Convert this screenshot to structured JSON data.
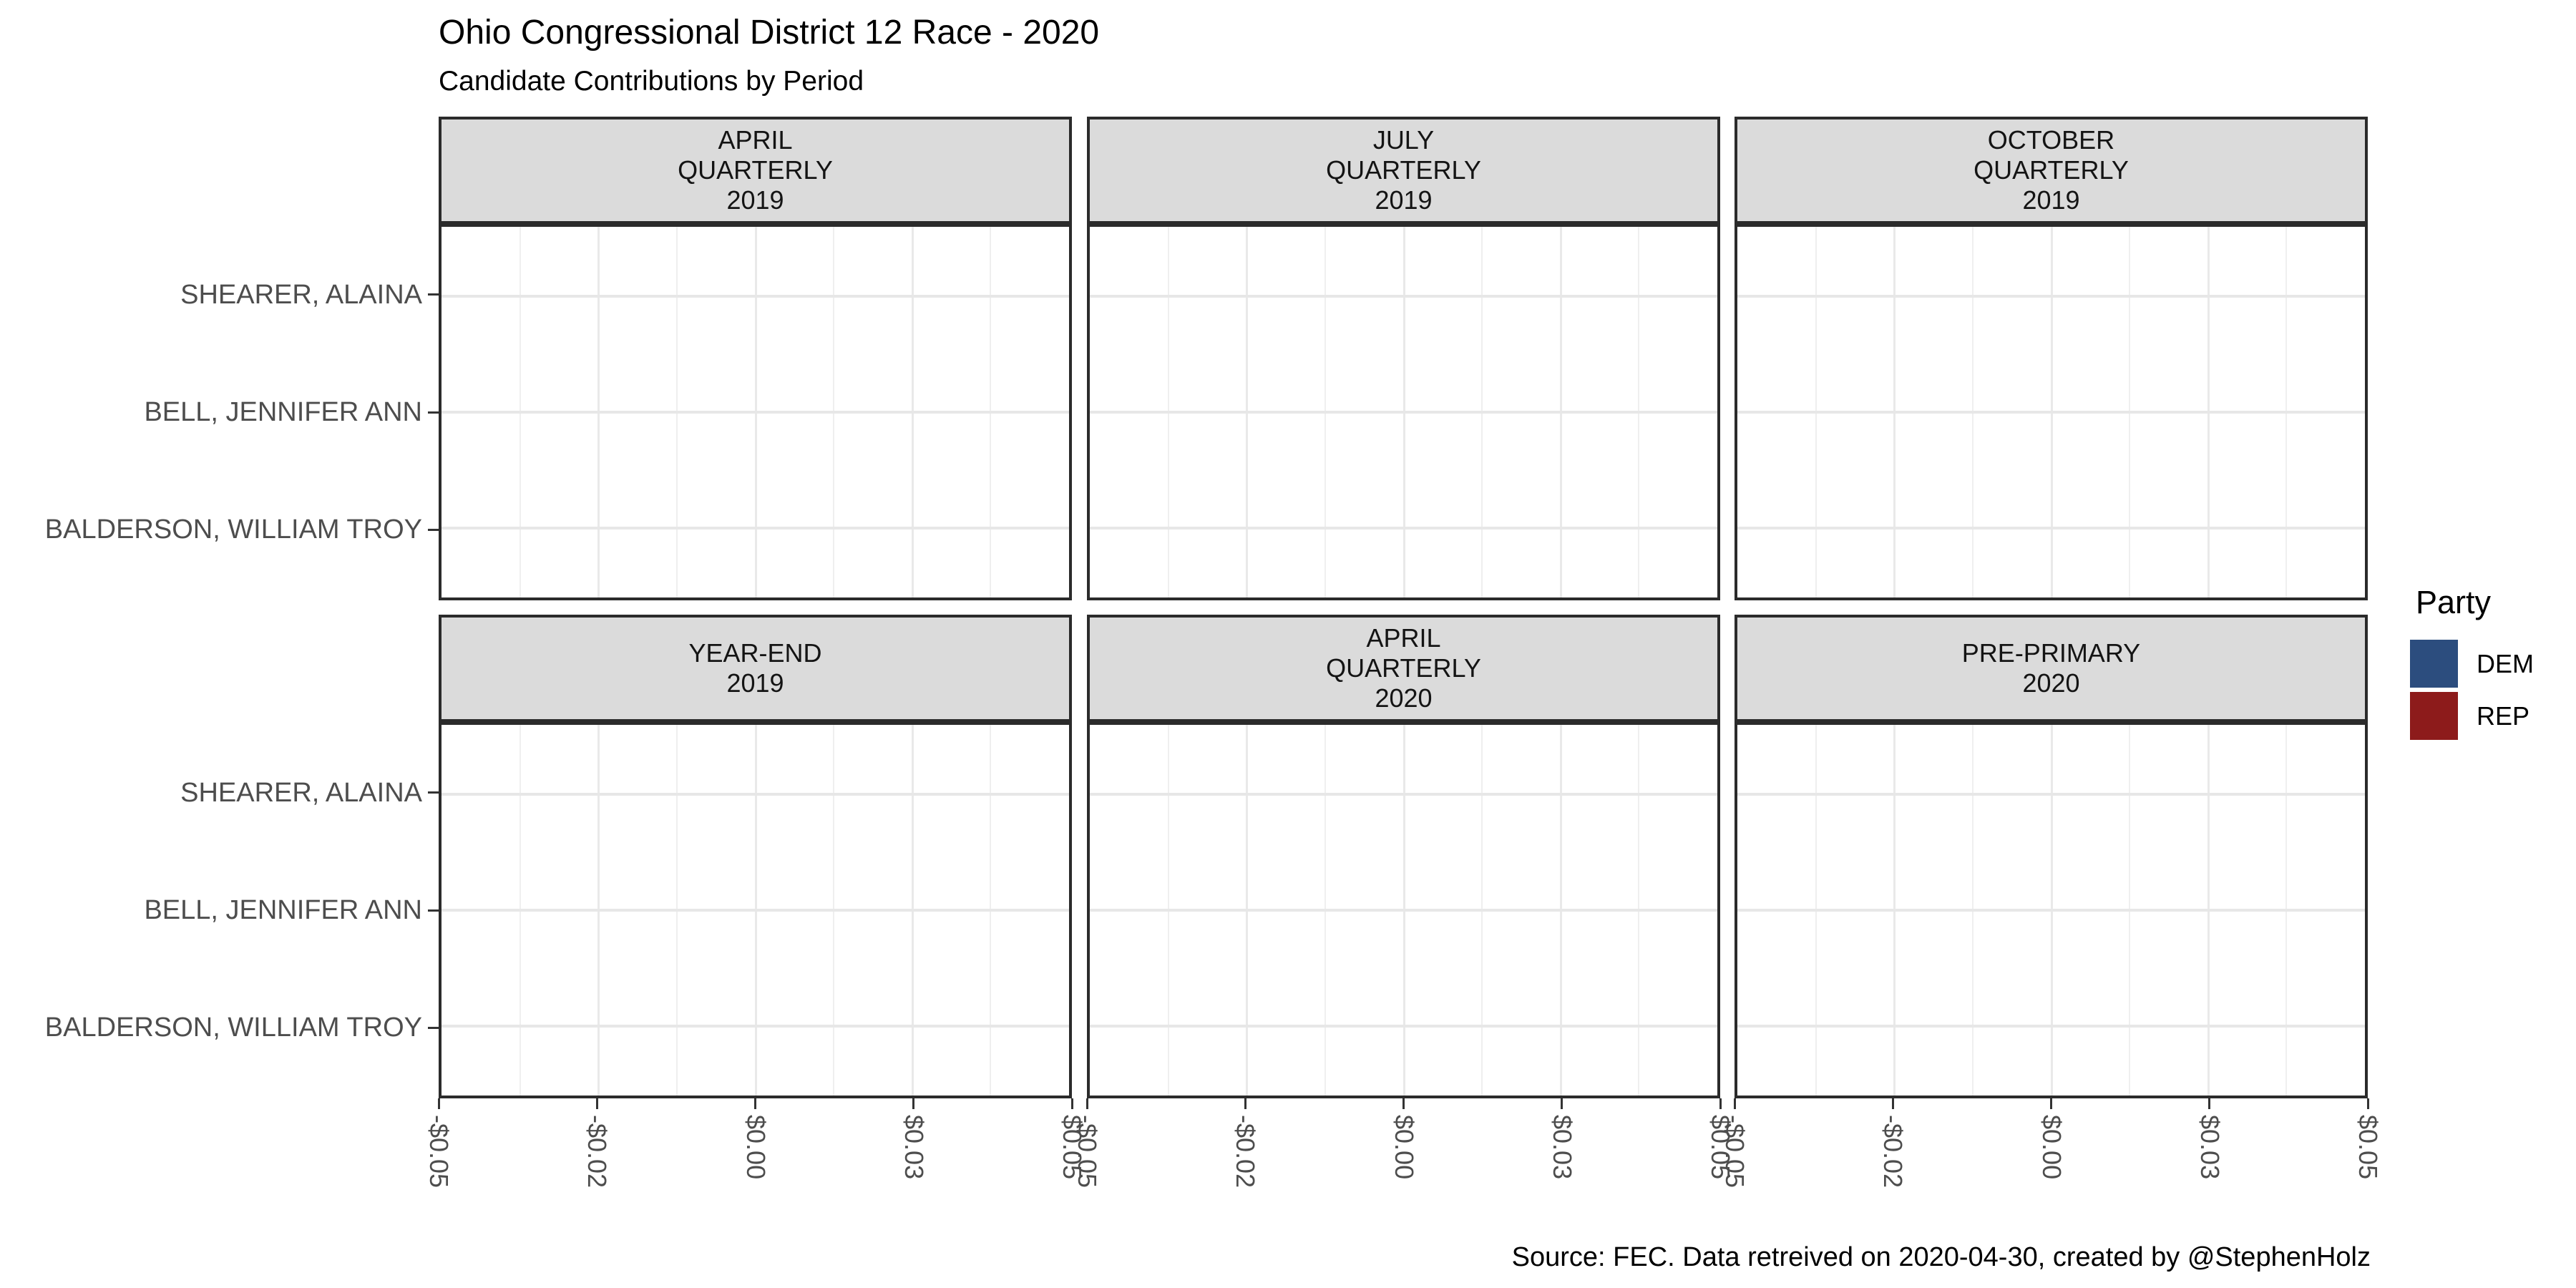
{
  "chart_data": {
    "type": "bar",
    "title": "Ohio Congressional District 12 Race - 2020",
    "subtitle": "Candidate Contributions by Period",
    "caption": "Source: FEC. Data retreived on 2020-04-30, created by @StephenHolz",
    "orientation": "horizontal",
    "grid": true,
    "legend_position": "right",
    "categories": [
      "SHEARER, ALAINA",
      "BELL, JENNIFER ANN",
      "BALDERSON, WILLIAM TROY"
    ],
    "x_tick_labels": [
      "-$0.05",
      "-$0.02",
      "$0.00",
      "$0.03",
      "$0.05"
    ],
    "x_tick_values": [
      -0.05,
      -0.025,
      0,
      0.025,
      0.05
    ],
    "xlim": [
      -0.05,
      0.05
    ],
    "x_format": "dollars",
    "facets": [
      {
        "period": "APRIL QUARTERLY 2019",
        "label_lines": [
          "APRIL",
          "QUARTERLY",
          "2019"
        ],
        "values": [
          0,
          0,
          0
        ]
      },
      {
        "period": "JULY QUARTERLY 2019",
        "label_lines": [
          "JULY",
          "QUARTERLY",
          "2019"
        ],
        "values": [
          0,
          0,
          0
        ]
      },
      {
        "period": "OCTOBER QUARTERLY 2019",
        "label_lines": [
          "OCTOBER",
          "QUARTERLY",
          "2019"
        ],
        "values": [
          0,
          0,
          0
        ]
      },
      {
        "period": "YEAR-END 2019",
        "label_lines": [
          "YEAR-END",
          "2019"
        ],
        "values": [
          0,
          0,
          0
        ]
      },
      {
        "period": "APRIL QUARTERLY 2020",
        "label_lines": [
          "APRIL",
          "QUARTERLY",
          "2020"
        ],
        "values": [
          0,
          0,
          0
        ]
      },
      {
        "period": "PRE-PRIMARY 2020",
        "label_lines": [
          "PRE-PRIMARY",
          "2020"
        ],
        "values": [
          0,
          0,
          0
        ]
      }
    ],
    "legend": {
      "title": "Party",
      "entries": [
        {
          "label": "DEM",
          "color": "#2c4d7e"
        },
        {
          "label": "REP",
          "color": "#8d1b1b"
        }
      ]
    },
    "colors": {
      "panel_border": "#2b2b2b",
      "strip_fill": "#dbdbdb",
      "grid_major": "#e7e7e7",
      "grid_minor": "#efefef",
      "axis_text": "#4d4d4d"
    }
  }
}
